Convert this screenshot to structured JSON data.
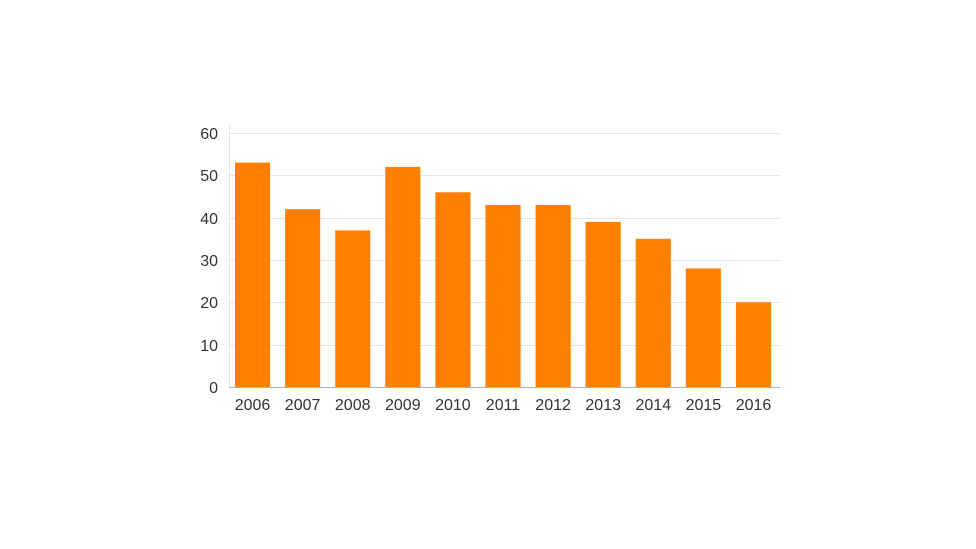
{
  "chart_data": {
    "type": "bar",
    "title": "",
    "xlabel": "",
    "ylabel": "",
    "categories": [
      "2006",
      "2007",
      "2008",
      "2009",
      "2010",
      "2011",
      "2012",
      "2013",
      "2014",
      "2015",
      "2016"
    ],
    "values": [
      53,
      42,
      37,
      52,
      46,
      43,
      43,
      39,
      35,
      28,
      20
    ],
    "ylim": [
      0,
      60
    ],
    "yticks": [
      0,
      10,
      20,
      30,
      40,
      50,
      60
    ],
    "grid": true,
    "legend": "none",
    "bar_color": "#ff7f00"
  }
}
